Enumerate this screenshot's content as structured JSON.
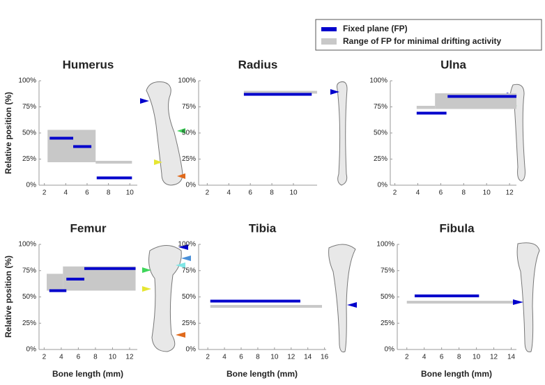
{
  "legend": {
    "fp": {
      "name": "Fixed plane (FP)",
      "color": "#0000cc"
    },
    "range": {
      "name": "Range of FP for minimal drifting activity",
      "color": "#c8c8c8"
    }
  },
  "ylabel": "Relative position (%)",
  "xlabel": "Bone length (mm)",
  "chart_data": [
    {
      "type": "range",
      "title": "Humerus",
      "xlim": [
        1.5,
        10.7
      ],
      "xticks": [
        2,
        4,
        6,
        8,
        10
      ],
      "ylim": [
        0,
        100
      ],
      "yticks": [
        {
          "value": 0,
          "label": "0%"
        },
        {
          "value": 25,
          "label": "25%"
        },
        {
          "value": 50,
          "label": "50%"
        },
        {
          "value": 75,
          "label": "75%"
        },
        {
          "value": 100,
          "label": "100%"
        }
      ],
      "range": [
        {
          "x": [
            2.3,
            6.8
          ],
          "y": [
            22,
            53
          ]
        },
        {
          "x": [
            6.8,
            10.2
          ],
          "y": [
            22,
            22
          ]
        }
      ],
      "fp": [
        {
          "x": [
            2.5,
            4.7
          ],
          "y": 45
        },
        {
          "x": [
            4.7,
            6.4
          ],
          "y": 37
        },
        {
          "x": [
            6.9,
            10.2
          ],
          "y": 7
        }
      ]
    },
    {
      "type": "range",
      "title": "Radius",
      "xlim": [
        1.2,
        12.2
      ],
      "xticks": [
        2,
        4,
        6,
        8,
        10
      ],
      "ylim": [
        0,
        100
      ],
      "yticks": [
        {
          "value": 0,
          "label": "0%"
        },
        {
          "value": 25,
          "label": "25%"
        },
        {
          "value": 50,
          "label": "50%"
        },
        {
          "value": 75,
          "label": "75%"
        },
        {
          "value": 100,
          "label": "100%"
        }
      ],
      "range": [
        {
          "x": [
            5.4,
            12.2
          ],
          "y": [
            89,
            89
          ]
        }
      ],
      "fp": [
        {
          "x": [
            5.4,
            11.7
          ],
          "y": 87
        }
      ]
    },
    {
      "type": "range",
      "title": "Ulna",
      "xlim": [
        1.6,
        12.6
      ],
      "xticks": [
        2,
        4,
        6,
        8,
        10,
        12
      ],
      "ylim": [
        0,
        100
      ],
      "yticks": [
        {
          "value": 0,
          "label": "0%"
        },
        {
          "value": 25,
          "label": "25%"
        },
        {
          "value": 50,
          "label": "50%"
        },
        {
          "value": 75,
          "label": "75%"
        },
        {
          "value": 100,
          "label": "100%"
        }
      ],
      "range": [
        {
          "x": [
            3.9,
            5.5
          ],
          "y": [
            73,
            76
          ]
        },
        {
          "x": [
            5.5,
            12.6
          ],
          "y": [
            73,
            88
          ]
        }
      ],
      "fp": [
        {
          "x": [
            3.9,
            6.5
          ],
          "y": 69
        },
        {
          "x": [
            6.6,
            12.6
          ],
          "y": 85
        }
      ]
    },
    {
      "type": "range",
      "title": "Femur",
      "xlim": [
        1.4,
        12.9
      ],
      "xticks": [
        2,
        4,
        6,
        8,
        10,
        12
      ],
      "ylim": [
        0,
        100
      ],
      "yticks": [
        {
          "value": 0,
          "label": "0%"
        },
        {
          "value": 25,
          "label": "25%"
        },
        {
          "value": 50,
          "label": "50%"
        },
        {
          "value": 75,
          "label": "75%"
        },
        {
          "value": 100,
          "label": "100%"
        }
      ],
      "range": [
        {
          "x": [
            2.3,
            4.2
          ],
          "y": [
            56,
            72
          ]
        },
        {
          "x": [
            4.2,
            12.7
          ],
          "y": [
            56,
            79
          ]
        }
      ],
      "fp": [
        {
          "x": [
            2.6,
            4.6
          ],
          "y": 56
        },
        {
          "x": [
            4.6,
            6.7
          ],
          "y": 67
        },
        {
          "x": [
            6.7,
            12.7
          ],
          "y": 77
        }
      ]
    },
    {
      "type": "range",
      "title": "Tibia",
      "xlim": [
        0.9,
        16.2
      ],
      "xticks": [
        2,
        4,
        6,
        8,
        10,
        12,
        14,
        16
      ],
      "ylim": [
        0,
        100
      ],
      "yticks": [
        {
          "value": 0,
          "label": "0%"
        },
        {
          "value": 25,
          "label": "25%"
        },
        {
          "value": 50,
          "label": "50%"
        },
        {
          "value": 75,
          "label": "75%"
        },
        {
          "value": 100,
          "label": "100%"
        }
      ],
      "range": [
        {
          "x": [
            2.3,
            15.7
          ],
          "y": [
            41,
            41
          ]
        }
      ],
      "fp": [
        {
          "x": [
            2.3,
            13.1
          ],
          "y": 46
        }
      ]
    },
    {
      "type": "range",
      "title": "Fibula",
      "xlim": [
        0.9,
        14.6
      ],
      "xticks": [
        2,
        4,
        6,
        8,
        10,
        12,
        14
      ],
      "ylim": [
        0,
        100
      ],
      "yticks": [
        {
          "value": 0,
          "label": "0%"
        },
        {
          "value": 25,
          "label": "25%"
        },
        {
          "value": 50,
          "label": "50%"
        },
        {
          "value": 75,
          "label": "75%"
        },
        {
          "value": 100,
          "label": "100%"
        }
      ],
      "range": [
        {
          "x": [
            2.0,
            14.2
          ],
          "y": [
            45,
            45
          ]
        }
      ],
      "fp": [
        {
          "x": [
            2.9,
            10.3
          ],
          "y": 51
        }
      ]
    }
  ]
}
